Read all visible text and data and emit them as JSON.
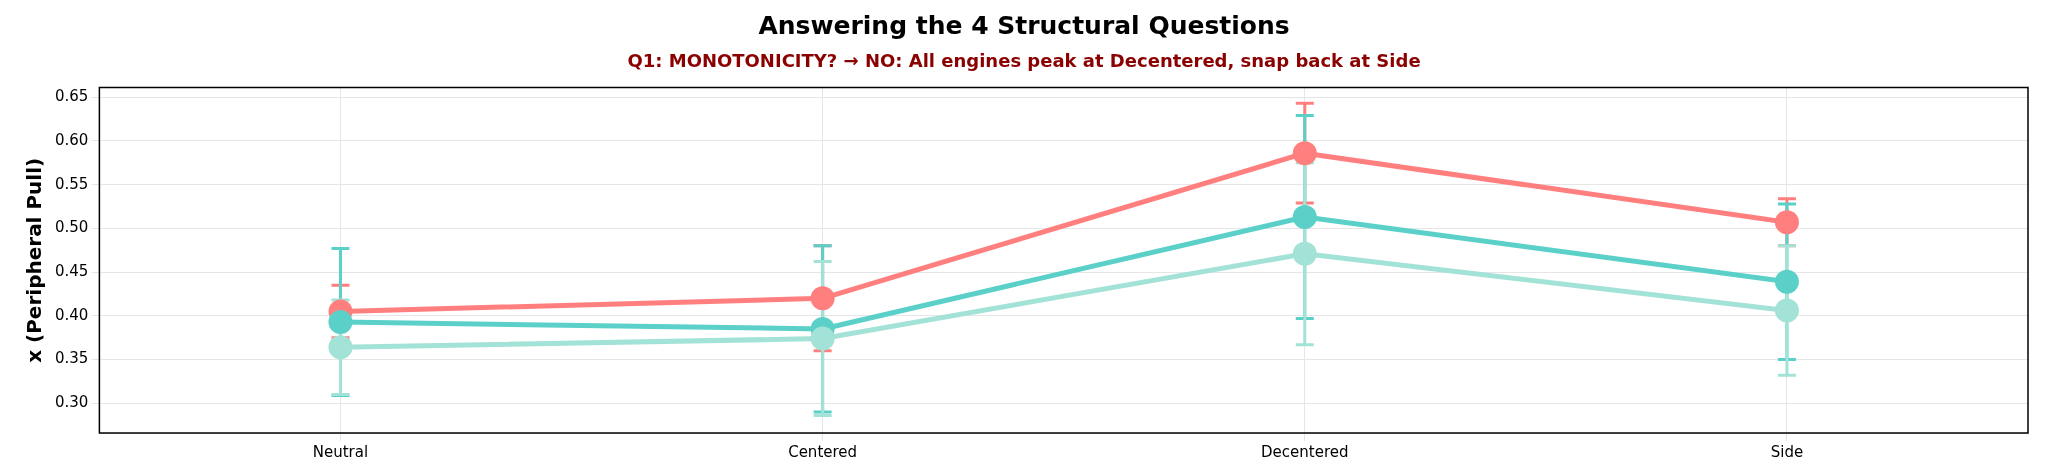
{
  "chart_data": {
    "type": "line",
    "title": "Answering the 4 Structural Questions",
    "subtitle": "Q1: MONOTONICITY? → NO: All engines peak at Decentered, snap back at Side",
    "ylabel": "x (Peripheral Pull)",
    "categories": [
      "Neutral",
      "Centered",
      "Decentered",
      "Side"
    ],
    "series": [
      {
        "color": "#ff7f7f",
        "values": [
          0.405,
          0.42,
          0.586,
          0.507
        ],
        "errors": [
          0.03,
          0.06,
          0.057,
          0.027
        ]
      },
      {
        "color": "#5ad0c8",
        "values": [
          0.393,
          0.385,
          0.513,
          0.439
        ],
        "errors": [
          0.084,
          0.095,
          0.116,
          0.089
        ]
      },
      {
        "color": "#a3e2d6",
        "values": [
          0.364,
          0.374,
          0.471,
          0.406
        ],
        "errors": [
          0.054,
          0.088,
          0.104,
          0.074
        ]
      }
    ],
    "ylim": [
      0.266,
      0.661
    ],
    "yticks": [
      {
        "value": 0.3,
        "label": "0.30"
      },
      0.35,
      {
        "value": 0.4,
        "label": "0.40"
      },
      0.45,
      {
        "value": 0.5,
        "label": "0.50"
      },
      0.55,
      {
        "value": 0.6,
        "label": "0.60"
      },
      0.65
    ],
    "grid": true,
    "marker": "circle",
    "line_style": "solid"
  }
}
